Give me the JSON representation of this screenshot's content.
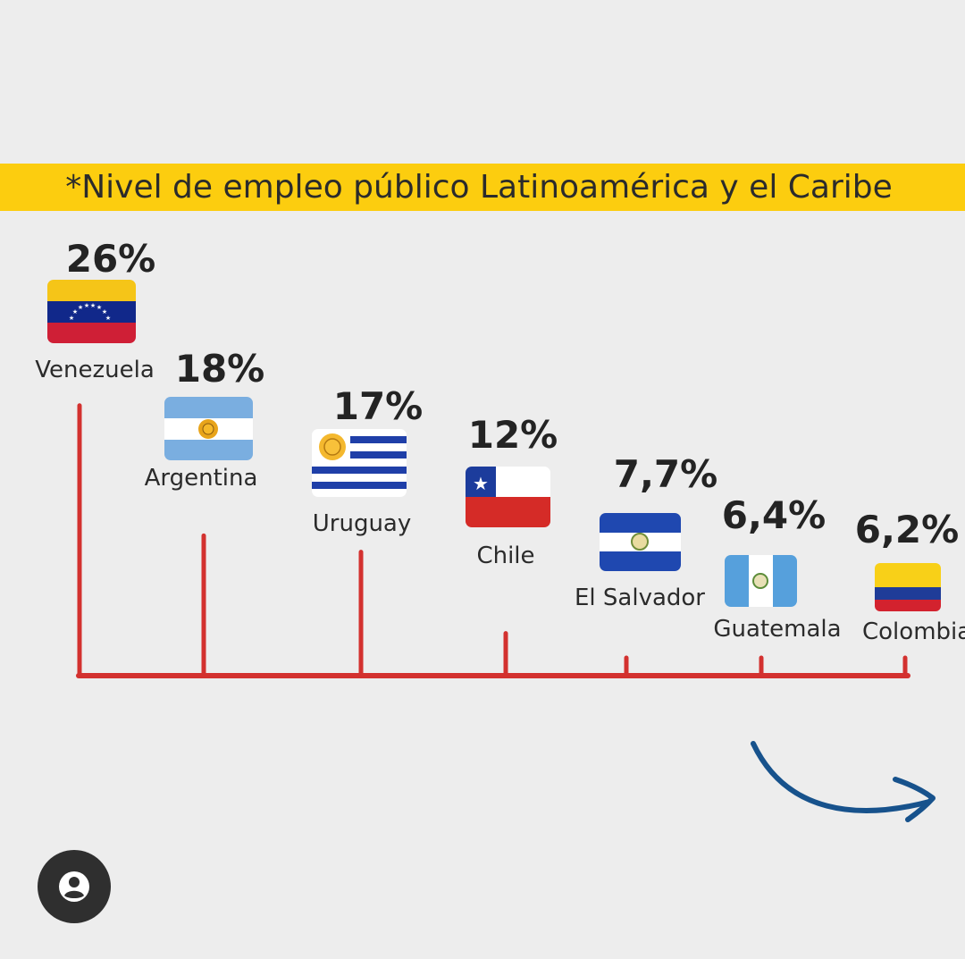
{
  "chart_data": {
    "type": "bar",
    "title": "*Nivel de empleo público Latinoamérica y el Caribe",
    "categories": [
      "Venezuela",
      "Argentina",
      "Uruguay",
      "Chile",
      "El Salvador",
      "Guatemala",
      "Colombia"
    ],
    "values": [
      26,
      18,
      17,
      12,
      7.7,
      6.4,
      6.2
    ],
    "value_labels": [
      "26%",
      "18%",
      "17%",
      "12%",
      "7,7%",
      "6,4%",
      "6,2%"
    ],
    "unit": "%",
    "ylim": [
      0,
      26
    ],
    "grid": false,
    "legend": "none",
    "bar_color": "#d3312f",
    "series": [
      {
        "values": [
          26,
          18,
          17,
          12,
          7.7,
          6.4,
          6.2
        ]
      }
    ]
  },
  "colors": {
    "banner": "#fccd0f",
    "axis": "#d3312f",
    "arrow": "#17528c",
    "button": "#2f2f2f"
  },
  "icons": {
    "next_arrow": "curved-arrow-right-icon",
    "user": "user-icon"
  }
}
